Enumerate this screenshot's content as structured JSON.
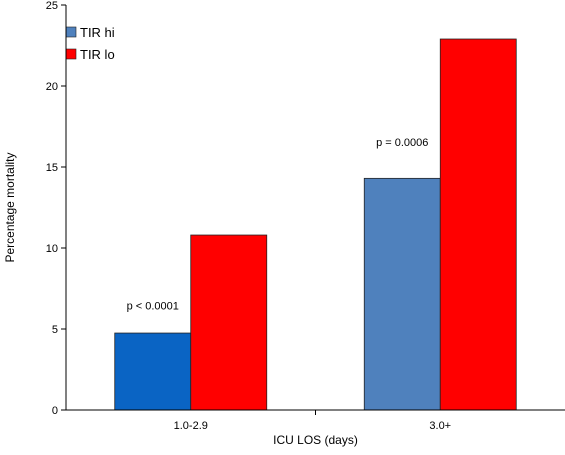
{
  "chart_data": {
    "type": "bar",
    "title": "",
    "xlabel": "ICU LOS (days)",
    "ylabel": "Percentage mortality",
    "ylim": [
      0,
      25
    ],
    "yticks": [
      0,
      5,
      10,
      15,
      20,
      25
    ],
    "grid": false,
    "legend_position": "top-left",
    "categories": [
      "1.0-2.9",
      "3.0+"
    ],
    "series": [
      {
        "name": "TIR hi",
        "values": [
          4.75,
          14.3
        ],
        "color": "#4f81bd",
        "bar_colors": [
          "#0a64c4",
          "#4f81bd"
        ]
      },
      {
        "name": "TIR lo",
        "values": [
          10.8,
          22.9
        ],
        "color": "#ff0000"
      }
    ],
    "annotations": [
      {
        "text": "p < 0.0001",
        "category": "1.0-2.9",
        "y": 6.2
      },
      {
        "text": "p = 0.0006",
        "category": "3.0+",
        "y": 16.3
      }
    ]
  }
}
